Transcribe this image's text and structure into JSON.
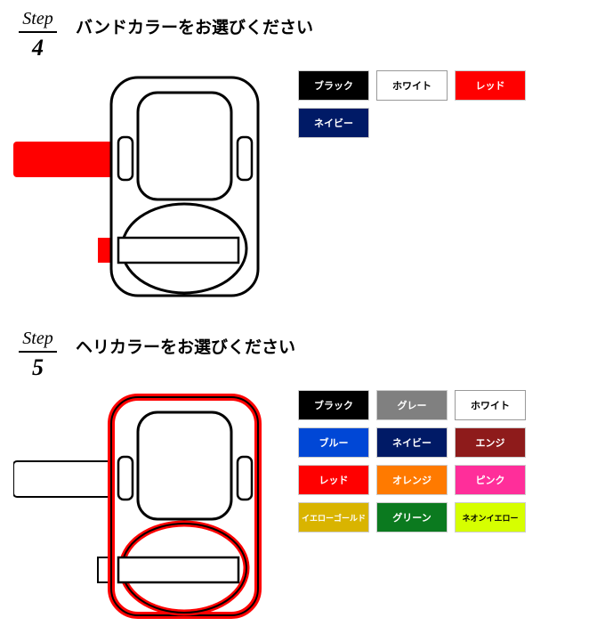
{
  "steps": [
    {
      "num": "4",
      "word": "Step",
      "title": "バンドカラーをお選びください",
      "preview_accent": "#ff0000",
      "swatches": [
        {
          "label": "ブラック",
          "bg": "#000000",
          "fg": "#ffffff"
        },
        {
          "label": "ホワイト",
          "bg": "#ffffff",
          "fg": "#000000"
        },
        {
          "label": "レッド",
          "bg": "#ff0000",
          "fg": "#ffffff"
        },
        {
          "label": "ネイビー",
          "bg": "#001a66",
          "fg": "#ffffff"
        }
      ]
    },
    {
      "num": "5",
      "word": "Step",
      "title": "ヘリカラーをお選びください",
      "preview_accent": "#ff0000",
      "swatches": [
        {
          "label": "ブラック",
          "bg": "#000000",
          "fg": "#ffffff"
        },
        {
          "label": "グレー",
          "bg": "#808080",
          "fg": "#ffffff"
        },
        {
          "label": "ホワイト",
          "bg": "#ffffff",
          "fg": "#000000"
        },
        {
          "label": "ブルー",
          "bg": "#0047d6",
          "fg": "#ffffff"
        },
        {
          "label": "ネイビー",
          "bg": "#001a66",
          "fg": "#ffffff"
        },
        {
          "label": "エンジ",
          "bg": "#8e1b1b",
          "fg": "#ffffff"
        },
        {
          "label": "レッド",
          "bg": "#ff0000",
          "fg": "#ffffff"
        },
        {
          "label": "オレンジ",
          "bg": "#ff7a00",
          "fg": "#ffffff"
        },
        {
          "label": "ピンク",
          "bg": "#ff2e9a",
          "fg": "#ffffff"
        },
        {
          "label": "イエローゴールド",
          "bg": "#d9b400",
          "fg": "#ffffff"
        },
        {
          "label": "グリーン",
          "bg": "#0b7a1f",
          "fg": "#ffffff"
        },
        {
          "label": "ネオンイエロー",
          "bg": "#d6ff00",
          "fg": "#000000"
        }
      ]
    }
  ]
}
